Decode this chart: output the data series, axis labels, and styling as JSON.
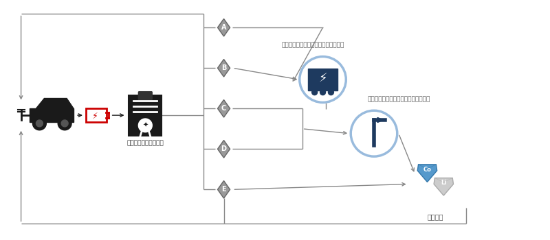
{
  "bg_color": "#ffffff",
  "line_color": "#888888",
  "dark_color": "#1a1a1a",
  "red_color": "#cc0000",
  "blue_circle_color": "#99bbdd",
  "dark_navy": "#1e3a5f",
  "light_blue_gem": "#55aadd",
  "grade_labels": [
    "A",
    "B",
    "C",
    "D",
    "E"
  ],
  "label_grading": "最適なグレーディング",
  "label_reuse1": "最適な用途でリユース：蓄電システム",
  "label_reuse2": "最適な用途でリユース：自律型街路灯",
  "label_recycle": "再資源化",
  "figsize": [
    8.0,
    3.5
  ],
  "dpi": 100
}
